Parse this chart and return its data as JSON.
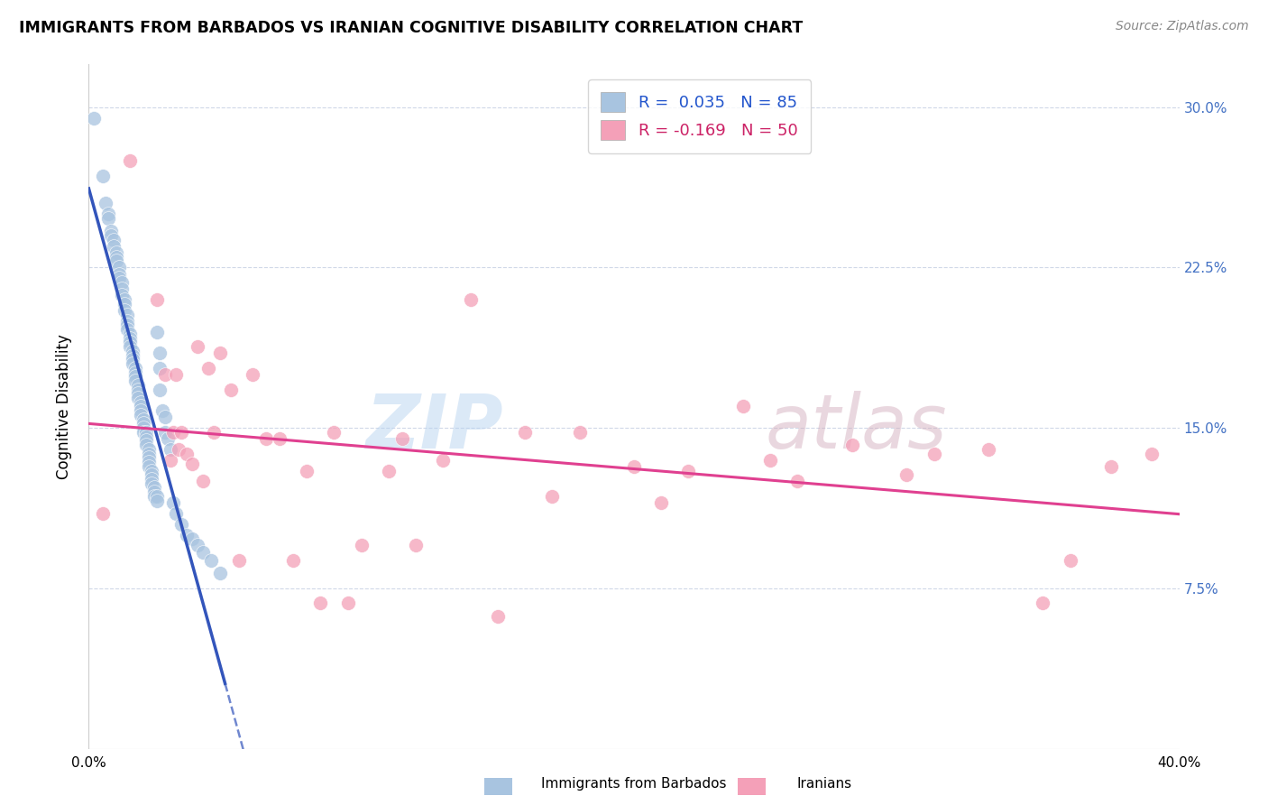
{
  "title": "IMMIGRANTS FROM BARBADOS VS IRANIAN COGNITIVE DISABILITY CORRELATION CHART",
  "source": "Source: ZipAtlas.com",
  "ylabel": "Cognitive Disability",
  "xlim": [
    0.0,
    0.4
  ],
  "ylim": [
    0.0,
    0.32
  ],
  "yticks": [
    0.075,
    0.15,
    0.225,
    0.3
  ],
  "ytick_labels": [
    "7.5%",
    "15.0%",
    "22.5%",
    "30.0%"
  ],
  "xticks": [
    0.0,
    0.1,
    0.2,
    0.3,
    0.4
  ],
  "xtick_labels": [
    "0.0%",
    "",
    "",
    "",
    "40.0%"
  ],
  "R_barbados": 0.035,
  "N_barbados": 85,
  "R_iranians": -0.169,
  "N_iranians": 50,
  "background_color": "#ffffff",
  "grid_color": "#d0d8e8",
  "barbados_color": "#a8c4e0",
  "iranians_color": "#f4a0b8",
  "barbados_line_color": "#3355bb",
  "iranians_line_color": "#e04090",
  "legend_label_barbados": "Immigrants from Barbados",
  "legend_label_iranians": "Iranians",
  "watermark_zip": "ZIP",
  "watermark_atlas": "atlas",
  "barbados_x": [
    0.002,
    0.005,
    0.006,
    0.007,
    0.007,
    0.008,
    0.008,
    0.009,
    0.009,
    0.01,
    0.01,
    0.01,
    0.011,
    0.011,
    0.011,
    0.012,
    0.012,
    0.012,
    0.013,
    0.013,
    0.013,
    0.014,
    0.014,
    0.014,
    0.014,
    0.015,
    0.015,
    0.015,
    0.015,
    0.016,
    0.016,
    0.016,
    0.016,
    0.017,
    0.017,
    0.017,
    0.017,
    0.018,
    0.018,
    0.018,
    0.018,
    0.019,
    0.019,
    0.019,
    0.019,
    0.02,
    0.02,
    0.02,
    0.02,
    0.021,
    0.021,
    0.021,
    0.021,
    0.022,
    0.022,
    0.022,
    0.022,
    0.022,
    0.023,
    0.023,
    0.023,
    0.023,
    0.024,
    0.024,
    0.024,
    0.025,
    0.025,
    0.025,
    0.026,
    0.026,
    0.026,
    0.027,
    0.028,
    0.028,
    0.029,
    0.03,
    0.031,
    0.032,
    0.034,
    0.036,
    0.038,
    0.04,
    0.042,
    0.045,
    0.048
  ],
  "barbados_y": [
    0.295,
    0.268,
    0.255,
    0.25,
    0.248,
    0.242,
    0.24,
    0.238,
    0.235,
    0.232,
    0.23,
    0.228,
    0.225,
    0.222,
    0.22,
    0.218,
    0.215,
    0.212,
    0.21,
    0.208,
    0.205,
    0.203,
    0.2,
    0.198,
    0.196,
    0.194,
    0.192,
    0.19,
    0.188,
    0.186,
    0.184,
    0.182,
    0.18,
    0.178,
    0.176,
    0.174,
    0.172,
    0.17,
    0.168,
    0.166,
    0.164,
    0.162,
    0.16,
    0.158,
    0.156,
    0.154,
    0.152,
    0.15,
    0.148,
    0.148,
    0.146,
    0.144,
    0.142,
    0.14,
    0.138,
    0.136,
    0.134,
    0.132,
    0.13,
    0.128,
    0.126,
    0.124,
    0.122,
    0.12,
    0.118,
    0.118,
    0.116,
    0.195,
    0.185,
    0.178,
    0.168,
    0.158,
    0.148,
    0.155,
    0.145,
    0.14,
    0.115,
    0.11,
    0.105,
    0.1,
    0.098,
    0.095,
    0.092,
    0.088,
    0.082
  ],
  "iranians_x": [
    0.005,
    0.015,
    0.025,
    0.028,
    0.03,
    0.031,
    0.032,
    0.033,
    0.034,
    0.036,
    0.038,
    0.04,
    0.042,
    0.044,
    0.046,
    0.048,
    0.052,
    0.055,
    0.06,
    0.065,
    0.07,
    0.075,
    0.08,
    0.085,
    0.09,
    0.095,
    0.1,
    0.11,
    0.115,
    0.12,
    0.13,
    0.14,
    0.15,
    0.16,
    0.17,
    0.18,
    0.2,
    0.21,
    0.22,
    0.24,
    0.25,
    0.26,
    0.28,
    0.3,
    0.31,
    0.33,
    0.35,
    0.36,
    0.375,
    0.39
  ],
  "iranians_y": [
    0.11,
    0.275,
    0.21,
    0.175,
    0.135,
    0.148,
    0.175,
    0.14,
    0.148,
    0.138,
    0.133,
    0.188,
    0.125,
    0.178,
    0.148,
    0.185,
    0.168,
    0.088,
    0.175,
    0.145,
    0.145,
    0.088,
    0.13,
    0.068,
    0.148,
    0.068,
    0.095,
    0.13,
    0.145,
    0.095,
    0.135,
    0.21,
    0.062,
    0.148,
    0.118,
    0.148,
    0.132,
    0.115,
    0.13,
    0.16,
    0.135,
    0.125,
    0.142,
    0.128,
    0.138,
    0.14,
    0.068,
    0.088,
    0.132,
    0.138
  ]
}
